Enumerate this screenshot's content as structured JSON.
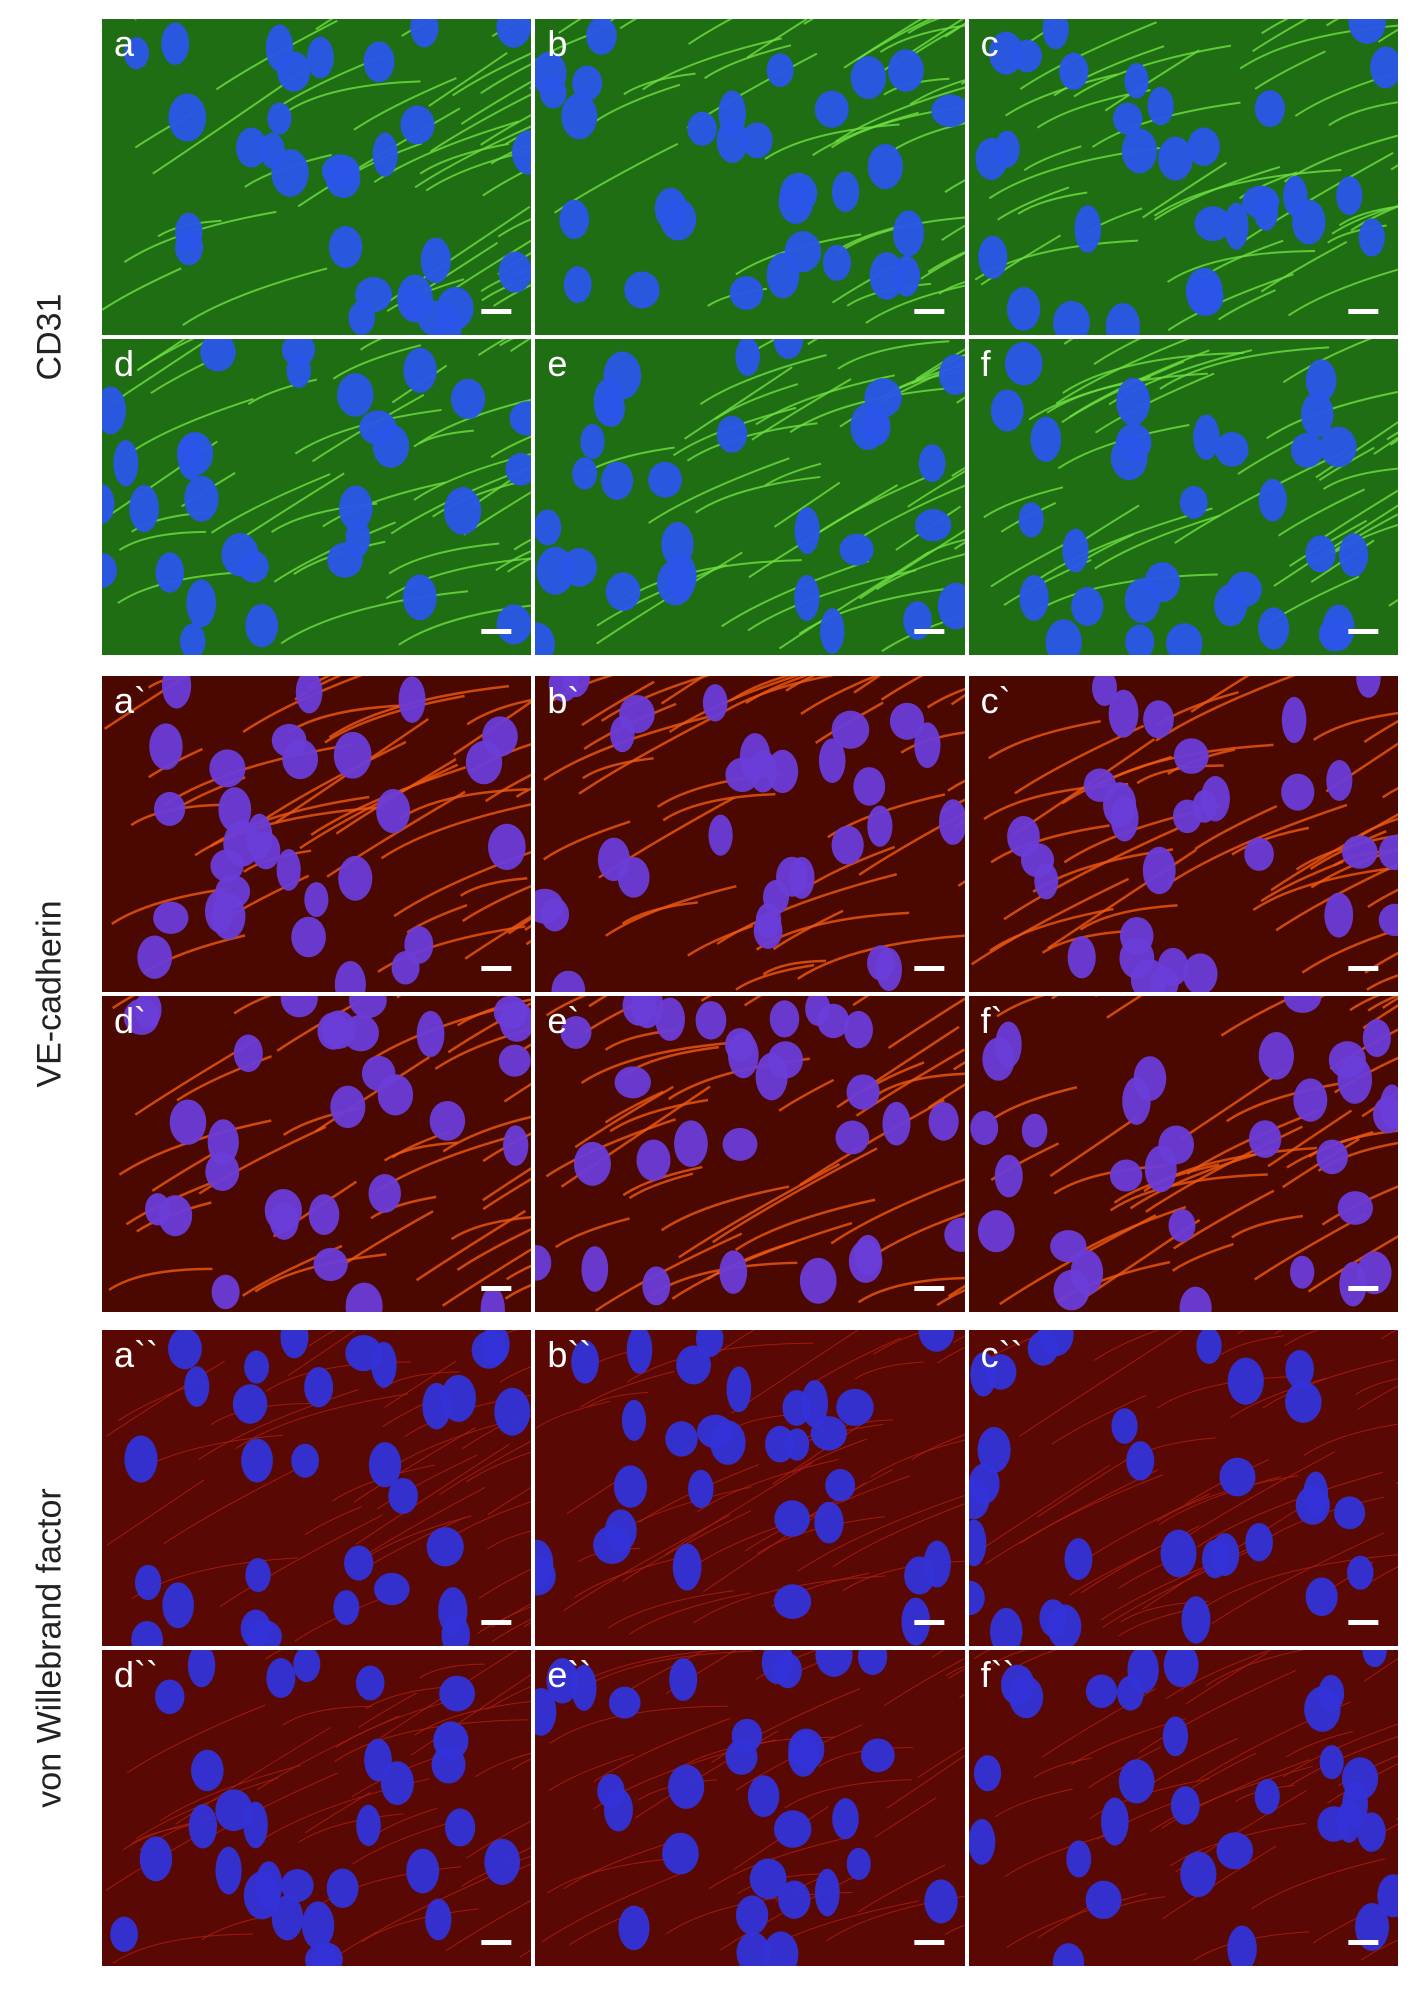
{
  "groups": [
    {
      "label": "CD31",
      "panels": [
        "a",
        "b",
        "c",
        "d",
        "e",
        "f"
      ]
    },
    {
      "label": "VE-cadherin",
      "panels": [
        "a`",
        "b`",
        "c`",
        "d`",
        "e`",
        "f`"
      ]
    },
    {
      "label": "von Willebrand factor",
      "panels": [
        "a``",
        "b``",
        "c``",
        "d``",
        "e``",
        "f``"
      ]
    }
  ]
}
